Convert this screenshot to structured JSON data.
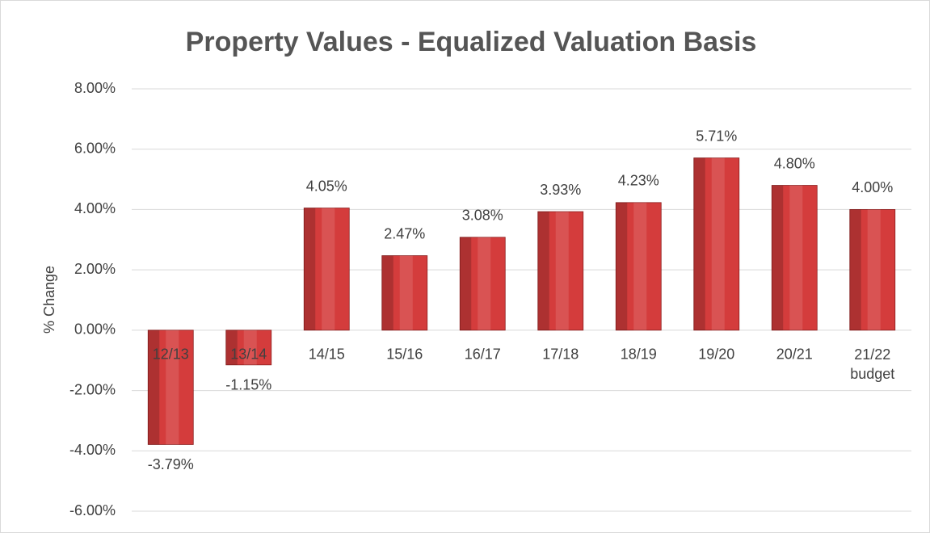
{
  "chart_data": {
    "type": "bar",
    "title": "Property Values - Equalized Valuation Basis",
    "y_label": "% Change",
    "categories": [
      "12/13",
      "13/14",
      "14/15",
      "15/16",
      "16/17",
      "17/18",
      "18/19",
      "19/20",
      "20/21",
      "21/22\nbudget"
    ],
    "values": [
      -3.79,
      -1.15,
      4.05,
      2.47,
      3.08,
      3.93,
      4.23,
      5.71,
      4.8,
      4.0
    ],
    "value_labels": [
      "-3.79%",
      "-1.15%",
      "4.05%",
      "2.47%",
      "3.08%",
      "3.93%",
      "4.23%",
      "5.71%",
      "4.80%",
      "4.00%"
    ],
    "color": "#d43c3c",
    "ylim": [
      -6,
      8
    ],
    "yticks": [
      {
        "value": -6,
        "label": "-6.00%"
      },
      {
        "value": -4,
        "label": "-4.00%"
      },
      {
        "value": -2,
        "label": "-2.00%"
      },
      {
        "value": 0,
        "label": "0.00%"
      },
      {
        "value": 2,
        "label": "2.00%"
      },
      {
        "value": 4,
        "label": "4.00%"
      },
      {
        "value": 6,
        "label": "6.00%"
      },
      {
        "value": 8,
        "label": "8.00%"
      }
    ],
    "grid": true
  }
}
